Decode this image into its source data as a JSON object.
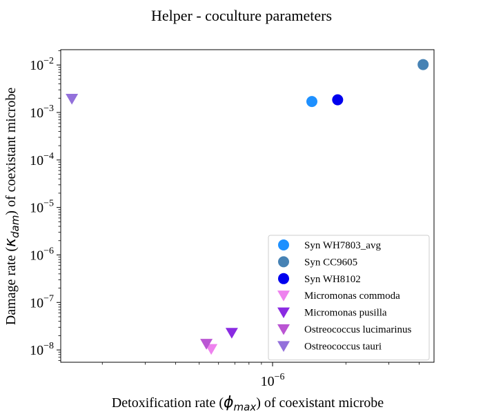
{
  "chart_data": {
    "type": "scatter",
    "title": "Helper - coculture parameters",
    "xlabel": "Detoxification rate (ϕmax) of coexistant microbe",
    "xlabel_parts": {
      "before": "Detoxification rate (",
      "symbol": "ϕ",
      "subscript": "max",
      "after": ") of coexistant microbe"
    },
    "ylabel": "Damage rate (κdam) of coexistant microbe",
    "ylabel_parts": {
      "before": "Damage rate (",
      "symbol": "κ",
      "subscript": "dam",
      "after": ") of coexistant microbe"
    },
    "xscale": "log",
    "yscale": "log",
    "xlim": [
      1.35e-07,
      4.6e-06
    ],
    "ylim": [
      5.5e-09,
      0.021
    ],
    "x_ticks": [
      {
        "value": 1e-06,
        "label": "10",
        "exp": "−6"
      }
    ],
    "y_ticks": [
      {
        "value": 1e-08,
        "label": "10",
        "exp": "−8"
      },
      {
        "value": 1e-07,
        "label": "10",
        "exp": "−7"
      },
      {
        "value": 1e-06,
        "label": "10",
        "exp": "−6"
      },
      {
        "value": 1e-05,
        "label": "10",
        "exp": "−5"
      },
      {
        "value": 0.0001,
        "label": "10",
        "exp": "−4"
      },
      {
        "value": 0.001,
        "label": "10",
        "exp": "−3"
      },
      {
        "value": 0.01,
        "label": "10",
        "exp": "−2"
      }
    ],
    "grid": false,
    "legend_position": "lower-right",
    "series": [
      {
        "name": "Syn WH7803_avg",
        "marker": "circle",
        "color": "#1e90ff",
        "points": [
          {
            "x": 1.45e-06,
            "y": 0.0017
          }
        ]
      },
      {
        "name": "Syn CC9605",
        "marker": "circle",
        "color": "#4682b4",
        "points": [
          {
            "x": 4.15e-06,
            "y": 0.0102
          }
        ]
      },
      {
        "name": "Syn WH8102",
        "marker": "circle",
        "color": "#0000ee",
        "points": [
          {
            "x": 1.85e-06,
            "y": 0.00185
          }
        ]
      },
      {
        "name": "Micromonas commoda",
        "marker": "triangle-down",
        "color": "#ee82ee",
        "points": [
          {
            "x": 5.6e-07,
            "y": 1.05e-08
          }
        ]
      },
      {
        "name": "Micromonas pusilla",
        "marker": "triangle-down",
        "color": "#8a2be2",
        "points": [
          {
            "x": 6.8e-07,
            "y": 2.3e-08
          }
        ]
      },
      {
        "name": "Ostreococcus lucimarinus",
        "marker": "triangle-down",
        "color": "#ba55d3",
        "points": [
          {
            "x": 5.35e-07,
            "y": 1.35e-08
          }
        ]
      },
      {
        "name": "Ostreococcus tauri",
        "marker": "triangle-down",
        "color": "#9370db",
        "points": [
          {
            "x": 1.5e-07,
            "y": 0.00195
          }
        ]
      }
    ]
  }
}
